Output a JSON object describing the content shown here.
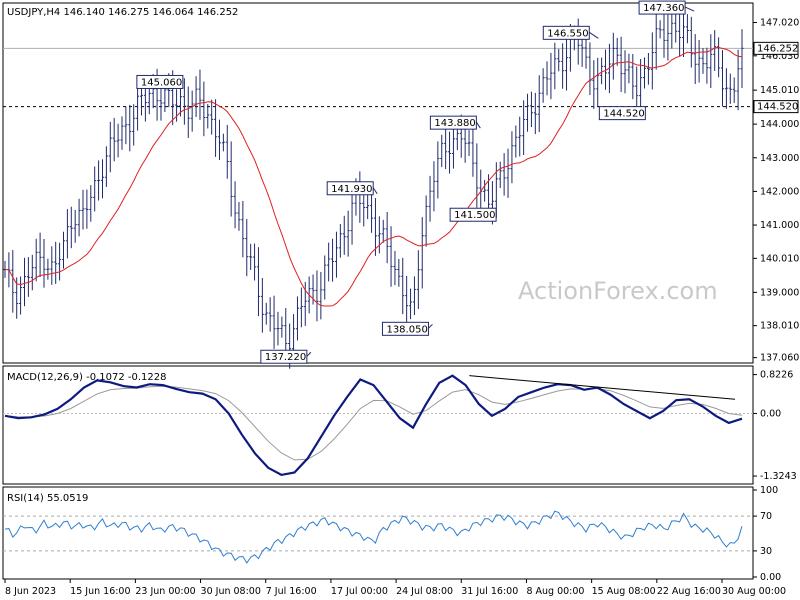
{
  "chart_data": [
    {
      "type": "candlestick",
      "header": "USDJPY,H4  146.140 146.275 146.064 146.252",
      "watermark": "ActionForex.com",
      "ylim": [
        136.9,
        147.6
      ],
      "y_ticks": [
        "147.020",
        "146.030",
        "145.010",
        "144.000",
        "143.000",
        "142.000",
        "141.000",
        "140.010",
        "139.000",
        "138.010",
        "137.060"
      ],
      "x_ticks": [
        "8 Jun 2023",
        "15 Jun 16:00",
        "23 Jun 00:00",
        "30 Jun 08:00",
        "7 Jul 16:00",
        "17 Jul 00:00",
        "24 Jul 08:00",
        "31 Jul 16:00",
        "8 Aug 00:00",
        "15 Aug 08:00",
        "22 Aug 16:00",
        "30 Aug 00:00"
      ],
      "current_price": "146.252",
      "support_level": "144.520",
      "annotations": [
        {
          "label": "145.060",
          "value": 145.06
        },
        {
          "label": "137.220",
          "value": 137.22
        },
        {
          "label": "141.930",
          "value": 141.93
        },
        {
          "label": "138.050",
          "value": 138.05
        },
        {
          "label": "143.880",
          "value": 143.88
        },
        {
          "label": "141.500",
          "value": 141.5
        },
        {
          "label": "146.550",
          "value": 146.55
        },
        {
          "label": "144.520",
          "value": 144.52
        },
        {
          "label": "147.360",
          "value": 147.36
        }
      ],
      "close_path": [
        139.5,
        139.0,
        139.3,
        139.8,
        140.1,
        139.6,
        140.3,
        141.4,
        141.2,
        141.9,
        142.8,
        143.3,
        143.8,
        144.2,
        144.6,
        145.0,
        144.9,
        144.6,
        144.8,
        144.4,
        144.7,
        144.3,
        143.6,
        142.6,
        141.2,
        140.1,
        139.2,
        138.3,
        137.9,
        137.5,
        138.2,
        138.8,
        139.0,
        139.6,
        140.1,
        140.9,
        141.7,
        141.6,
        141.2,
        140.5,
        139.8,
        139.2,
        138.2,
        140.8,
        142.4,
        143.0,
        143.5,
        143.8,
        142.9,
        142.2,
        141.6,
        142.3,
        143.1,
        143.7,
        144.3,
        144.9,
        145.4,
        145.8,
        146.2,
        146.5,
        145.8,
        145.2,
        145.6,
        146.3,
        145.5,
        144.9,
        145.7,
        146.4,
        146.7,
        147.0,
        146.6,
        146.1,
        145.8,
        146.0,
        145.4,
        144.8,
        146.25
      ]
    },
    {
      "type": "line",
      "label": "MACD(12,26,9) -0.1072 -0.1228",
      "ylim": [
        -1.45,
        0.92
      ],
      "y_ticks": [
        "0.8226",
        "0.00",
        "-1.3243"
      ],
      "macd": [
        -0.05,
        -0.1,
        -0.08,
        -0.02,
        0.1,
        0.3,
        0.55,
        0.7,
        0.66,
        0.58,
        0.55,
        0.62,
        0.6,
        0.52,
        0.45,
        0.42,
        0.3,
        0.0,
        -0.45,
        -0.85,
        -1.15,
        -1.3,
        -1.25,
        -0.95,
        -0.5,
        -0.05,
        0.35,
        0.72,
        0.6,
        0.25,
        -0.1,
        -0.3,
        0.2,
        0.65,
        0.8,
        0.6,
        0.2,
        -0.05,
        0.1,
        0.35,
        0.45,
        0.55,
        0.62,
        0.6,
        0.5,
        0.55,
        0.4,
        0.2,
        0.05,
        -0.1,
        0.05,
        0.28,
        0.3,
        0.15,
        -0.05,
        -0.2,
        -0.11
      ],
      "trendline": [
        0.8,
        0.3
      ]
    },
    {
      "type": "line",
      "label": "RSI(14) 55.0519",
      "ylim": [
        0,
        100
      ],
      "y_ticks": [
        "100",
        "70",
        "30",
        "0.00"
      ],
      "rsi": [
        55,
        48,
        60,
        52,
        62,
        57,
        63,
        58,
        60,
        56,
        64,
        58,
        62,
        57,
        55,
        60,
        53,
        58,
        56,
        50,
        45,
        38,
        30,
        26,
        22,
        20,
        24,
        32,
        40,
        45,
        52,
        58,
        62,
        66,
        60,
        55,
        50,
        46,
        40,
        55,
        62,
        68,
        64,
        58,
        56,
        60,
        54,
        50,
        58,
        63,
        66,
        70,
        68,
        62,
        59,
        64,
        70,
        74,
        66,
        60,
        55,
        62,
        57,
        50,
        45,
        52,
        58,
        60,
        55,
        63,
        70,
        58,
        55,
        50,
        40,
        35,
        55
      ]
    }
  ]
}
